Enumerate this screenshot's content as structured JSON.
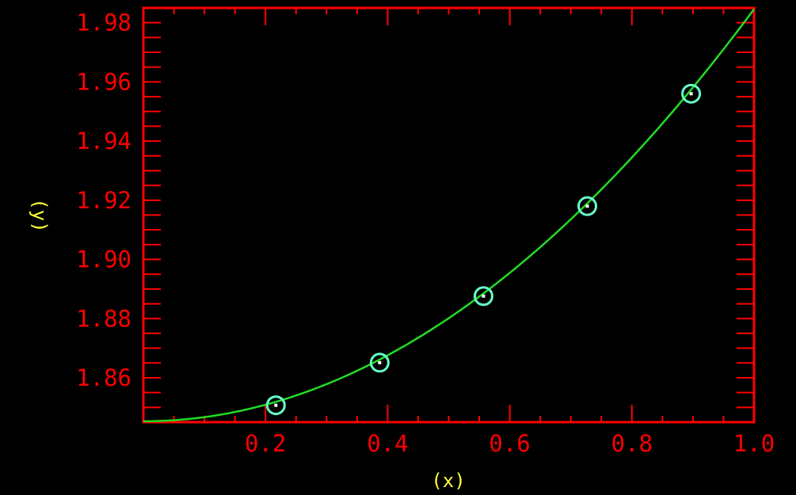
{
  "chart_data": {
    "type": "scatter",
    "title": "",
    "xlabel": "(x)",
    "ylabel": "(y)",
    "xlim": [
      0.0,
      1.0
    ],
    "ylim": [
      1.845,
      1.985
    ],
    "x_ticks": [
      0.2,
      0.4,
      0.6,
      0.8,
      1.0
    ],
    "x_tick_labels": [
      "0.2",
      "0.4",
      "0.6",
      "0.8",
      "1.0"
    ],
    "y_ticks": [
      1.86,
      1.88,
      1.9,
      1.92,
      1.94,
      1.96,
      1.98
    ],
    "y_tick_labels": [
      "1.86",
      "1.88",
      "1.90",
      "1.92",
      "1.94",
      "1.96",
      "1.98"
    ],
    "grid": false,
    "series": [
      {
        "kind": "points",
        "x": [
          0.217,
          0.387,
          0.557,
          0.727,
          0.897
        ],
        "y": [
          1.8507,
          1.8651,
          1.8876,
          1.918,
          1.956
        ]
      },
      {
        "kind": "fit-curve",
        "model": "y = 1.8453 + 0.1393 * x^2",
        "x": [
          0.0,
          0.1,
          0.2,
          0.3,
          0.4,
          0.5,
          0.6,
          0.7,
          0.8,
          0.9,
          1.0
        ],
        "y": [
          1.8453,
          1.8467,
          1.8509,
          1.8578,
          1.8676,
          1.8801,
          1.8954,
          1.9136,
          1.9344,
          1.9581,
          1.9846
        ]
      }
    ],
    "colors": {
      "background": "#000000",
      "axes": "#ff0000",
      "tick_labels": "#ff0000",
      "axis_labels": "#ffff33",
      "curve": "#22dd22",
      "markers": "#66ffcc",
      "marker_center": "#ffffff"
    }
  }
}
